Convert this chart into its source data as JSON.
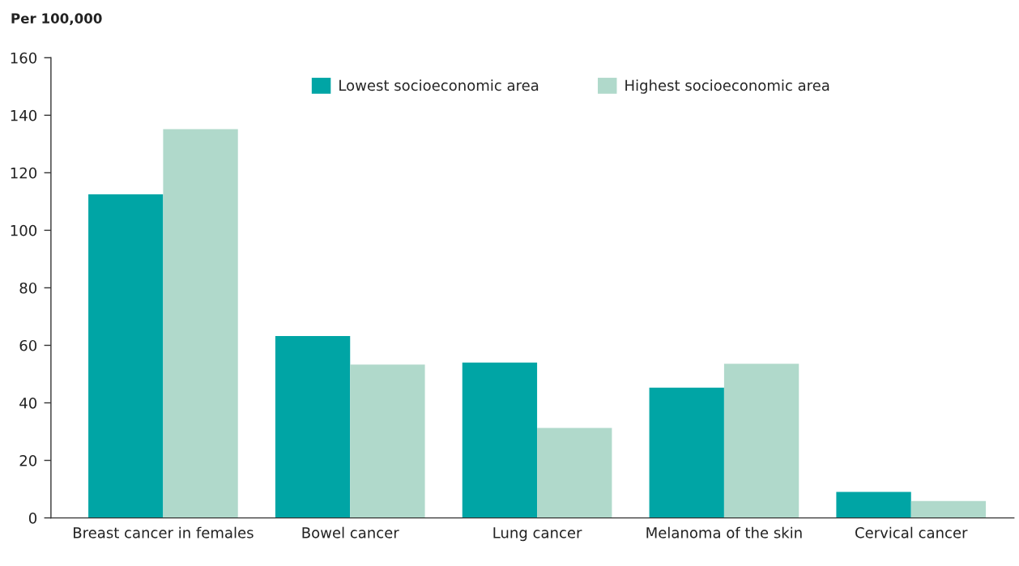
{
  "chart_data": {
    "type": "bar",
    "ylabel": "Per 100,000",
    "categories": [
      "Breast cancer in females",
      "Bowel cancer",
      "Lung cancer",
      "Melanoma of the skin",
      "Cervical cancer"
    ],
    "series": [
      {
        "name": "Lowest socioeconomic area",
        "color": "#00a5a5",
        "values": [
          112.5,
          63.2,
          54.0,
          45.3,
          9.0
        ]
      },
      {
        "name": "Highest socioeconomic area",
        "color": "#b0d9cb",
        "values": [
          135.2,
          53.3,
          31.3,
          53.6,
          5.9
        ]
      }
    ],
    "ylim": [
      0,
      160
    ],
    "yticks": [
      0,
      20,
      40,
      60,
      80,
      100,
      120,
      140,
      160
    ],
    "grid": false,
    "legend": "top"
  }
}
